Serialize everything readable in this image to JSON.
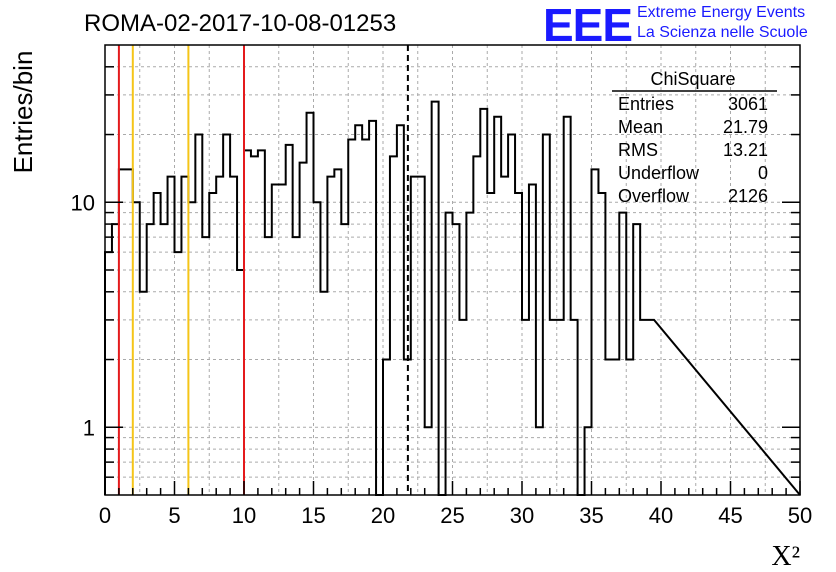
{
  "header": {
    "title": "ROMA-02-2017-10-08-01253",
    "logo": "EEE",
    "logo_line1": "Extreme Energy Events",
    "logo_line2": "La Scienza nelle Scuole"
  },
  "stats": {
    "name": "ChiSquare",
    "rows": [
      {
        "label": "Entries",
        "value": "3061"
      },
      {
        "label": "Mean",
        "value": "21.79"
      },
      {
        "label": "RMS",
        "value": "13.21"
      },
      {
        "label": "Underflow",
        "value": "0"
      },
      {
        "label": "Overflow",
        "value": "2126"
      }
    ]
  },
  "chart_data": {
    "type": "histogram",
    "title": "ROMA-02-2017-10-08-01253",
    "xlabel": "X²",
    "ylabel": "Entries/bin",
    "xlim": [
      0,
      50
    ],
    "ylim": [
      0.5,
      50
    ],
    "yscale": "log",
    "grid": true,
    "bin_width": 0.5,
    "x_ticks": [
      "0",
      "5",
      "10",
      "15",
      "20",
      "25",
      "30",
      "35",
      "40",
      "45",
      "50"
    ],
    "y_ticks": [
      "1",
      "10"
    ],
    "values": [
      6,
      8,
      14,
      14,
      10,
      4,
      8,
      11,
      8,
      13,
      6,
      13,
      10,
      20,
      7,
      11,
      13,
      20,
      13,
      5,
      17,
      16,
      17,
      7,
      12,
      12,
      18,
      7,
      15,
      25,
      10,
      4,
      13,
      14,
      8,
      19,
      22,
      19,
      23,
      0,
      2,
      16,
      22,
      2,
      13,
      13,
      1,
      28,
      0,
      9,
      8,
      3,
      9,
      16,
      26,
      11,
      24,
      13,
      20,
      11,
      3,
      12,
      1,
      20,
      3,
      3,
      24,
      3,
      0,
      1,
      14,
      11,
      2,
      2,
      9,
      2,
      8,
      3,
      3
    ],
    "reference_lines": [
      {
        "x": 1,
        "color": "#e41a1c",
        "style": "solid"
      },
      {
        "x": 2,
        "color": "#f5c518",
        "style": "solid"
      },
      {
        "x": 6,
        "color": "#f5c518",
        "style": "solid"
      },
      {
        "x": 10,
        "color": "#e41a1c",
        "style": "solid"
      },
      {
        "x": 21.79,
        "color": "#000000",
        "style": "dashed"
      }
    ]
  }
}
